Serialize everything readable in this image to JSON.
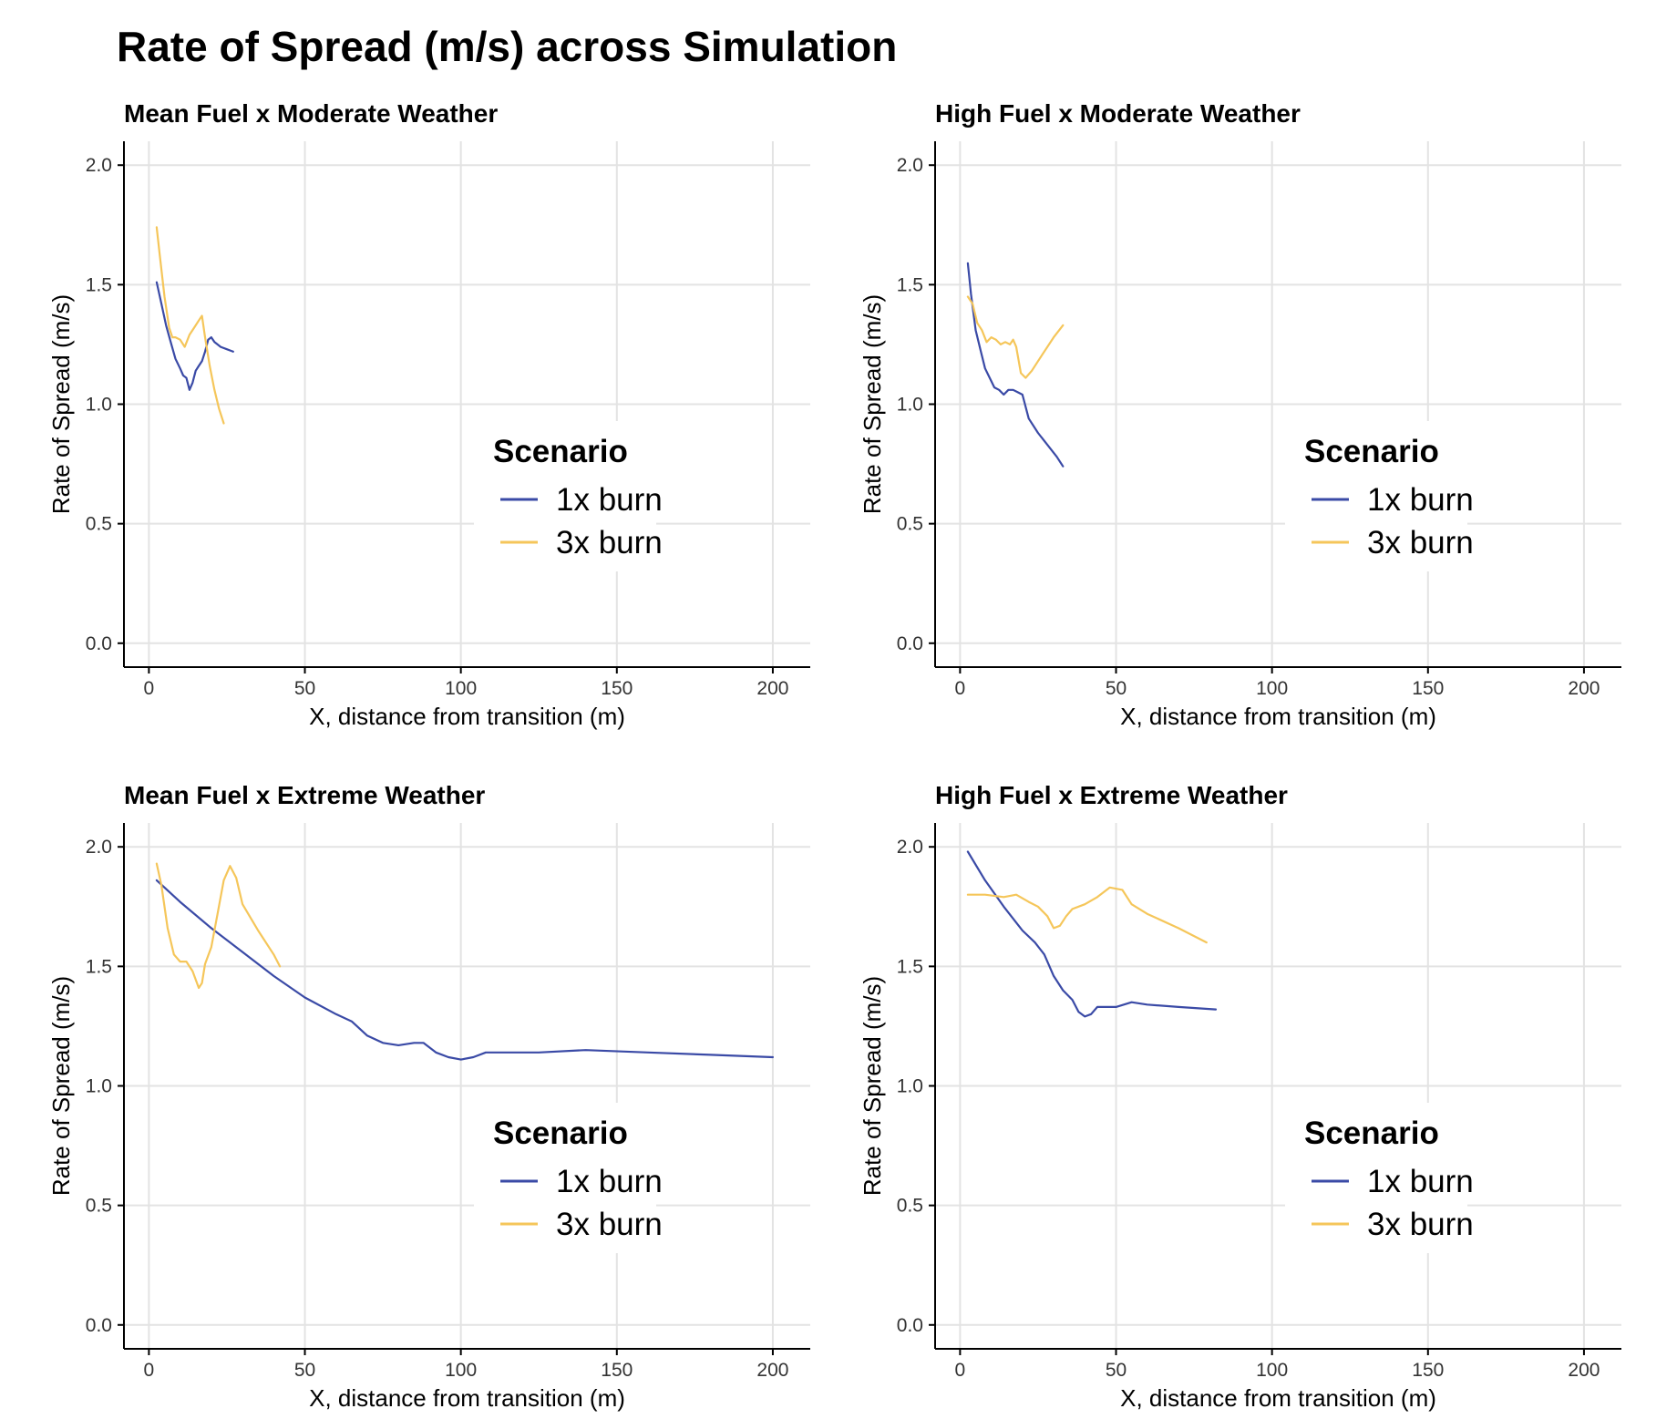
{
  "title": "Rate of Spread (m/s) across Simulation",
  "colors": {
    "1x burn": "#3a4aa6",
    "3x burn": "#f5c65a",
    "grid": "#e3e3e3",
    "axis": "#000000"
  },
  "chart_data": [
    {
      "type": "line",
      "title": "Mean Fuel x Moderate Weather",
      "xlabel": "X, distance from transition (m)",
      "ylabel": "Rate of Spread (m/s)",
      "xlim": [
        -8,
        212
      ],
      "ylim": [
        -0.1,
        2.1
      ],
      "xticks": [
        "0",
        "50",
        "100",
        "150",
        "200"
      ],
      "yticks": [
        "0.0",
        "0.5",
        "1.0",
        "1.5",
        "2.0"
      ],
      "grid": true,
      "legend": {
        "title": "Scenario",
        "placement": "center-right",
        "entries": [
          "1x burn",
          "3x burn"
        ]
      },
      "series": [
        {
          "name": "1x burn",
          "x": [
            2.5,
            4,
            5.5,
            7,
            8.5,
            10,
            11,
            12,
            13,
            14,
            15,
            16,
            17,
            18,
            19,
            20,
            21,
            23,
            25,
            27
          ],
          "y": [
            1.51,
            1.42,
            1.33,
            1.26,
            1.19,
            1.15,
            1.12,
            1.11,
            1.06,
            1.09,
            1.14,
            1.16,
            1.18,
            1.22,
            1.27,
            1.28,
            1.26,
            1.24,
            1.23,
            1.22
          ]
        },
        {
          "name": "3x burn",
          "x": [
            2.5,
            3.5,
            5,
            6.5,
            7.5,
            8.5,
            10,
            11.5,
            13,
            14.5,
            16,
            17,
            18,
            19.5,
            21,
            22.5,
            24
          ],
          "y": [
            1.74,
            1.62,
            1.45,
            1.32,
            1.28,
            1.28,
            1.27,
            1.24,
            1.29,
            1.32,
            1.35,
            1.37,
            1.28,
            1.16,
            1.06,
            0.98,
            0.92
          ]
        }
      ]
    },
    {
      "type": "line",
      "title": "High Fuel x Moderate Weather",
      "xlabel": "X, distance from transition (m)",
      "ylabel": "Rate of Spread (m/s)",
      "xlim": [
        -8,
        212
      ],
      "ylim": [
        -0.1,
        2.1
      ],
      "xticks": [
        "0",
        "50",
        "100",
        "150",
        "200"
      ],
      "yticks": [
        "0.0",
        "0.5",
        "1.0",
        "1.5",
        "2.0"
      ],
      "grid": true,
      "legend": {
        "title": "Scenario",
        "placement": "center-right",
        "entries": [
          "1x burn",
          "3x burn"
        ]
      },
      "series": [
        {
          "name": "1x burn",
          "x": [
            2.5,
            3.5,
            5,
            6.5,
            8,
            9.5,
            11,
            12.5,
            14,
            15.5,
            17,
            18.5,
            20,
            22,
            25,
            28,
            31,
            33
          ],
          "y": [
            1.59,
            1.46,
            1.31,
            1.23,
            1.15,
            1.11,
            1.07,
            1.06,
            1.04,
            1.06,
            1.06,
            1.05,
            1.04,
            0.94,
            0.88,
            0.83,
            0.78,
            0.74
          ]
        },
        {
          "name": "3x burn",
          "x": [
            2.5,
            4,
            5.5,
            7,
            8.5,
            10,
            11.5,
            13,
            14.5,
            16,
            17,
            18,
            19.5,
            21,
            23,
            25,
            27.5,
            30,
            33
          ],
          "y": [
            1.45,
            1.42,
            1.34,
            1.31,
            1.26,
            1.28,
            1.27,
            1.25,
            1.26,
            1.25,
            1.27,
            1.24,
            1.13,
            1.11,
            1.14,
            1.18,
            1.23,
            1.28,
            1.33
          ]
        }
      ]
    },
    {
      "type": "line",
      "title": "Mean Fuel x Extreme Weather",
      "xlabel": "X, distance from transition (m)",
      "ylabel": "Rate of Spread (m/s)",
      "xlim": [
        -8,
        212
      ],
      "ylim": [
        -0.1,
        2.1
      ],
      "xticks": [
        "0",
        "50",
        "100",
        "150",
        "200"
      ],
      "yticks": [
        "0.0",
        "0.5",
        "1.0",
        "1.5",
        "2.0"
      ],
      "grid": true,
      "legend": {
        "title": "Scenario",
        "placement": "center-right",
        "entries": [
          "1x burn",
          "3x burn"
        ]
      },
      "series": [
        {
          "name": "1x burn",
          "x": [
            2.5,
            10,
            20,
            30,
            40,
            50,
            60,
            65,
            70,
            75,
            80,
            85,
            88,
            92,
            96,
            100,
            104,
            108,
            115,
            125,
            140,
            160,
            180,
            200
          ],
          "y": [
            1.86,
            1.77,
            1.66,
            1.56,
            1.46,
            1.37,
            1.3,
            1.27,
            1.21,
            1.18,
            1.17,
            1.18,
            1.18,
            1.14,
            1.12,
            1.11,
            1.12,
            1.14,
            1.14,
            1.14,
            1.15,
            1.14,
            1.13,
            1.12
          ]
        },
        {
          "name": "3x burn",
          "x": [
            2.5,
            4,
            6,
            8,
            10,
            12,
            14,
            16,
            17,
            18,
            20,
            22,
            24,
            26,
            28,
            30,
            35,
            40,
            42
          ],
          "y": [
            1.93,
            1.84,
            1.66,
            1.55,
            1.52,
            1.52,
            1.48,
            1.41,
            1.43,
            1.51,
            1.58,
            1.72,
            1.86,
            1.92,
            1.87,
            1.76,
            1.65,
            1.55,
            1.5
          ]
        }
      ]
    },
    {
      "type": "line",
      "title": "High Fuel x Extreme Weather",
      "xlabel": "X, distance from transition (m)",
      "ylabel": "Rate of Spread (m/s)",
      "xlim": [
        -8,
        212
      ],
      "ylim": [
        -0.1,
        2.1
      ],
      "xticks": [
        "0",
        "50",
        "100",
        "150",
        "200"
      ],
      "yticks": [
        "0.0",
        "0.5",
        "1.0",
        "1.5",
        "2.0"
      ],
      "grid": true,
      "legend": {
        "title": "Scenario",
        "placement": "center-right",
        "entries": [
          "1x burn",
          "3x burn"
        ]
      },
      "series": [
        {
          "name": "1x burn",
          "x": [
            2.5,
            8,
            14,
            20,
            24,
            27,
            30,
            33,
            36,
            38,
            40,
            42,
            44,
            46,
            50,
            55,
            60,
            70,
            82
          ],
          "y": [
            1.98,
            1.86,
            1.75,
            1.65,
            1.6,
            1.55,
            1.46,
            1.4,
            1.36,
            1.31,
            1.29,
            1.3,
            1.33,
            1.33,
            1.33,
            1.35,
            1.34,
            1.33,
            1.32
          ]
        },
        {
          "name": "3x burn",
          "x": [
            2.5,
            8,
            14,
            18,
            22,
            25,
            28,
            30,
            32,
            34,
            36,
            40,
            44,
            48,
            52,
            55,
            60,
            70,
            79
          ],
          "y": [
            1.8,
            1.8,
            1.79,
            1.8,
            1.77,
            1.75,
            1.71,
            1.66,
            1.67,
            1.71,
            1.74,
            1.76,
            1.79,
            1.83,
            1.82,
            1.76,
            1.72,
            1.66,
            1.6
          ]
        }
      ]
    }
  ]
}
